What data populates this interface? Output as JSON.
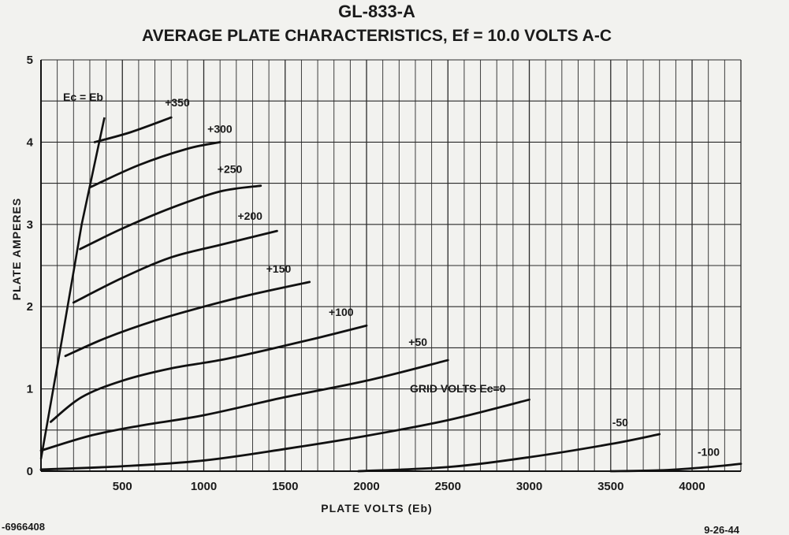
{
  "chart_data": {
    "type": "line",
    "title": "GL-833-A",
    "subtitle": "AVERAGE PLATE CHARACTERISTICS, Ef = 10.0 VOLTS A-C",
    "xlabel": "PLATE VOLTS (Eb)",
    "ylabel": "PLATE AMPERES",
    "xlim": [
      0,
      4300
    ],
    "ylim": [
      0,
      5
    ],
    "x_ticks": [
      "500",
      "1000",
      "1500",
      "2000",
      "2500",
      "3000",
      "3500",
      "4000"
    ],
    "y_ticks": [
      "0",
      "1",
      "2",
      "3",
      "4",
      "5"
    ],
    "grid": true,
    "boundary_label": "Ec = Eb",
    "grid_volts_label": "GRID VOLTS Ec=0",
    "boundary": [
      [
        0,
        0.15
      ],
      [
        120,
        1.5
      ],
      [
        250,
        3.0
      ],
      [
        390,
        4.3
      ]
    ],
    "series": [
      {
        "name": "+350",
        "label": "+350",
        "points": [
          [
            330,
            4.0
          ],
          [
            550,
            4.12
          ],
          [
            800,
            4.3
          ]
        ]
      },
      {
        "name": "+300",
        "label": "+300",
        "points": [
          [
            300,
            3.45
          ],
          [
            600,
            3.72
          ],
          [
            900,
            3.92
          ],
          [
            1100,
            4.0
          ]
        ]
      },
      {
        "name": "+250",
        "label": "+250",
        "points": [
          [
            240,
            2.7
          ],
          [
            500,
            2.95
          ],
          [
            800,
            3.2
          ],
          [
            1100,
            3.4
          ],
          [
            1350,
            3.47
          ]
        ]
      },
      {
        "name": "+200",
        "label": "+200",
        "points": [
          [
            200,
            2.05
          ],
          [
            500,
            2.35
          ],
          [
            800,
            2.6
          ],
          [
            1100,
            2.75
          ],
          [
            1450,
            2.92
          ]
        ]
      },
      {
        "name": "+150",
        "label": "+150",
        "points": [
          [
            150,
            1.4
          ],
          [
            400,
            1.62
          ],
          [
            700,
            1.83
          ],
          [
            1000,
            2.0
          ],
          [
            1300,
            2.15
          ],
          [
            1650,
            2.3
          ]
        ]
      },
      {
        "name": "+100",
        "label": "+100",
        "points": [
          [
            60,
            0.6
          ],
          [
            250,
            0.9
          ],
          [
            500,
            1.1
          ],
          [
            800,
            1.25
          ],
          [
            1100,
            1.35
          ],
          [
            1400,
            1.48
          ],
          [
            1700,
            1.62
          ],
          [
            2000,
            1.77
          ]
        ]
      },
      {
        "name": "+50",
        "label": "+50",
        "points": [
          [
            0,
            0.25
          ],
          [
            300,
            0.43
          ],
          [
            600,
            0.55
          ],
          [
            1000,
            0.68
          ],
          [
            1500,
            0.9
          ],
          [
            2000,
            1.1
          ],
          [
            2500,
            1.35
          ]
        ]
      },
      {
        "name": "Ec=0",
        "label": "",
        "points": [
          [
            0,
            0.02
          ],
          [
            500,
            0.06
          ],
          [
            1000,
            0.13
          ],
          [
            1500,
            0.27
          ],
          [
            2000,
            0.43
          ],
          [
            2500,
            0.62
          ],
          [
            3000,
            0.87
          ]
        ]
      },
      {
        "name": "-50",
        "label": "-50",
        "points": [
          [
            1950,
            0.0
          ],
          [
            2500,
            0.05
          ],
          [
            3000,
            0.17
          ],
          [
            3500,
            0.33
          ],
          [
            3800,
            0.45
          ]
        ]
      },
      {
        "name": "-100",
        "label": "-100",
        "points": [
          [
            3500,
            0.0
          ],
          [
            3800,
            0.01
          ],
          [
            4100,
            0.05
          ],
          [
            4300,
            0.09
          ]
        ]
      }
    ],
    "footer_left": "-6966408",
    "footer_right": "9-26-44"
  }
}
